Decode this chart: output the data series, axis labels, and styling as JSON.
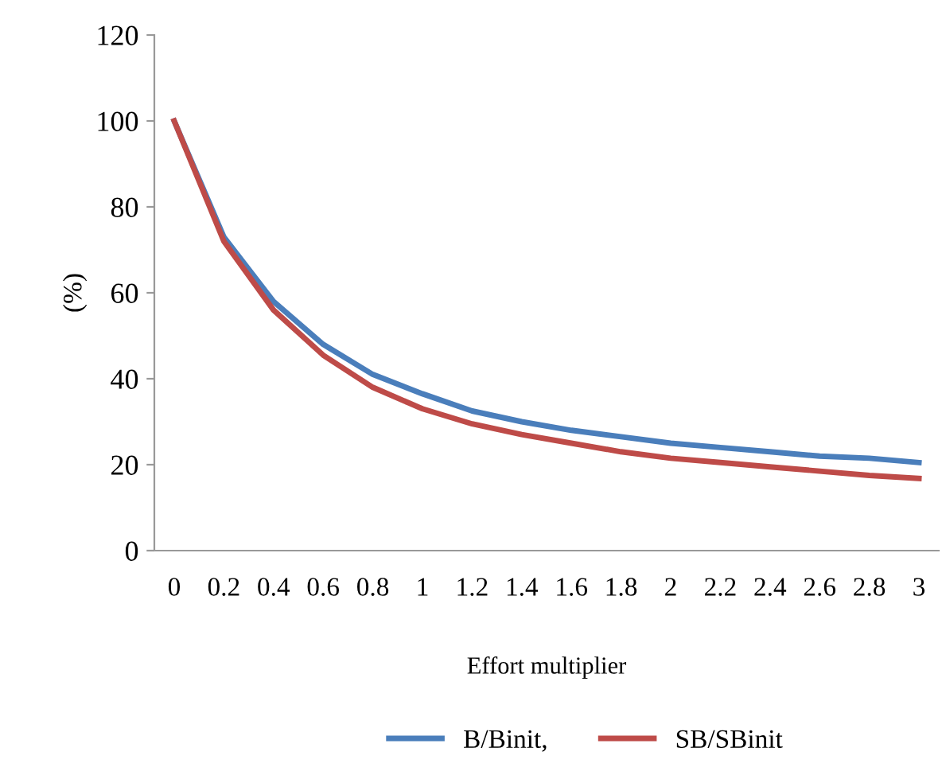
{
  "chart_data": {
    "type": "line",
    "xlabel": "Effort multiplier",
    "ylabel": "(%)",
    "categories": [
      "0",
      "0.2",
      "0.4",
      "0.6",
      "0.8",
      "1",
      "1.2",
      "1.4",
      "1.6",
      "1.8",
      "2",
      "2.2",
      "2.4",
      "2.6",
      "2.8",
      "3"
    ],
    "series": [
      {
        "name": "B/Binit,",
        "color": "#4a7ebb",
        "values": [
          100,
          73,
          58,
          48,
          41,
          36.5,
          32.5,
          30,
          28,
          26.5,
          25,
          24,
          23,
          22,
          21.5,
          20.5
        ]
      },
      {
        "name": "SB/SBinit",
        "color": "#be4b48",
        "values": [
          100,
          72,
          56,
          45.5,
          38,
          33,
          29.5,
          27,
          25,
          23,
          21.5,
          20.5,
          19.5,
          18.5,
          17.5,
          16.8
        ]
      }
    ],
    "ylim": [
      0,
      120
    ],
    "yticks": [
      0,
      20,
      40,
      60,
      80,
      100,
      120
    ],
    "grid": false,
    "legend": "bottom",
    "marker": "none",
    "line_style": "solid"
  }
}
